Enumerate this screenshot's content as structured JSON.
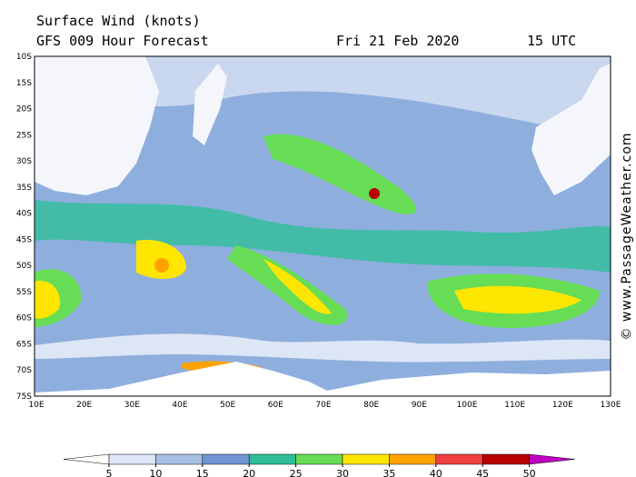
{
  "header": {
    "title": "Surface Wind (knots)",
    "subtitle": "GFS 009 Hour Forecast",
    "date": "Fri 21 Feb 2020",
    "time": "15 UTC"
  },
  "latitude_labels": [
    "10S",
    "15S",
    "20S",
    "25S",
    "30S",
    "35S",
    "40S",
    "45S",
    "50S",
    "55S",
    "60S",
    "65S",
    "70S",
    "75S"
  ],
  "longitude_labels": [
    "10E",
    "20E",
    "30E",
    "40E",
    "50E",
    "60E",
    "70E",
    "80E",
    "90E",
    "100E",
    "110E",
    "120E",
    "130E"
  ],
  "colorbar": {
    "ticks": [
      5,
      10,
      15,
      20,
      25,
      30,
      35,
      40,
      45,
      50
    ],
    "colors": [
      "#ffffff",
      "#dde6f4",
      "#a8bfe3",
      "#6f95d3",
      "#2fbf98",
      "#66dd55",
      "#ffe600",
      "#ffa200",
      "#f04040",
      "#b80000",
      "#c000c0"
    ]
  },
  "watermark": "© www.PassageWeather.com"
}
